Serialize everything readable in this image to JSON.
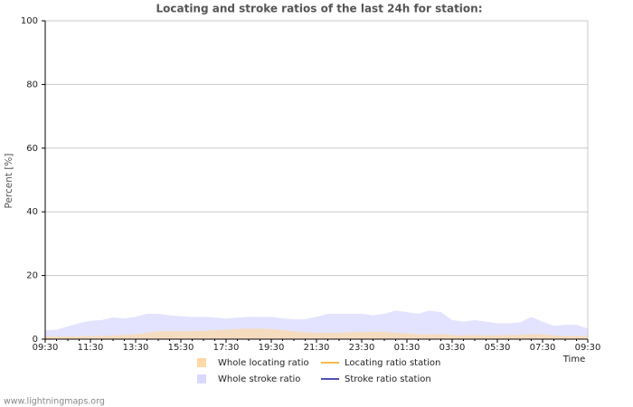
{
  "chart_data": {
    "type": "area",
    "title": "Locating and stroke ratios of the last 24h for station:",
    "y_label": "Percent   [%]",
    "x_label": "Time",
    "source": "www.lightningmaps.org",
    "categories": [
      "09:30",
      null,
      null,
      null,
      "11:30",
      null,
      null,
      null,
      "13:30",
      null,
      null,
      null,
      "15:30",
      null,
      null,
      null,
      "17:30",
      null,
      null,
      null,
      "19:30",
      null,
      null,
      null,
      "21:30",
      null,
      null,
      null,
      "23:30",
      null,
      null,
      null,
      "01:30",
      null,
      null,
      null,
      "03:30",
      null,
      null,
      null,
      "05:30",
      null,
      null,
      null,
      "07:30",
      null,
      null,
      null,
      "09:30"
    ],
    "ylim": [
      0,
      100
    ],
    "yticks": [
      0,
      20,
      40,
      60,
      80,
      100
    ],
    "grid": true,
    "series": [
      {
        "name": "Whole stroke ratio",
        "kind": "area",
        "color": "#d9d9ff",
        "values": [
          2.8,
          3.0,
          4.0,
          5.0,
          5.8,
          6.0,
          6.8,
          6.5,
          7.0,
          8.0,
          8.0,
          7.5,
          7.2,
          7.0,
          7.0,
          6.8,
          6.5,
          6.8,
          7.0,
          7.0,
          7.0,
          6.5,
          6.2,
          6.3,
          7.0,
          8.0,
          8.0,
          8.0,
          8.0,
          7.5,
          8.0,
          9.0,
          8.5,
          8.0,
          9.0,
          8.5,
          6.0,
          5.5,
          6.0,
          5.5,
          5.0,
          5.0,
          5.3,
          7.0,
          5.5,
          4.2,
          4.5,
          4.5,
          3.3
        ]
      },
      {
        "name": "Whole locating ratio",
        "kind": "area",
        "color": "#fcd9a8",
        "values": [
          0.8,
          0.8,
          0.8,
          0.9,
          1.0,
          1.0,
          1.2,
          1.3,
          1.5,
          2.0,
          2.5,
          2.5,
          2.5,
          2.5,
          2.6,
          2.8,
          3.0,
          3.2,
          3.3,
          3.3,
          3.2,
          2.8,
          2.5,
          2.2,
          2.0,
          2.0,
          2.0,
          2.2,
          2.2,
          2.3,
          2.3,
          2.0,
          1.8,
          1.5,
          1.5,
          1.6,
          1.3,
          1.2,
          1.3,
          1.2,
          1.2,
          1.3,
          1.3,
          1.6,
          1.5,
          1.2,
          1.0,
          1.0,
          1.0
        ]
      },
      {
        "name": "Locating ratio station",
        "kind": "line",
        "color": "#f5b94a",
        "values": [
          null,
          null,
          null,
          null,
          null,
          null,
          null,
          null,
          null,
          null,
          null,
          null,
          null,
          null,
          null,
          null,
          null,
          null,
          null,
          null,
          null,
          null,
          null,
          null,
          null,
          null,
          null,
          null,
          null,
          null,
          null,
          null,
          null,
          null,
          null,
          null,
          null,
          null,
          null,
          null,
          null,
          null,
          null,
          null,
          null,
          null,
          null,
          null,
          null
        ]
      },
      {
        "name": "Stroke ratio station",
        "kind": "line",
        "color": "#5050b8",
        "values": [
          null,
          null,
          null,
          null,
          null,
          null,
          null,
          null,
          null,
          null,
          null,
          null,
          null,
          null,
          null,
          null,
          null,
          null,
          null,
          null,
          null,
          null,
          null,
          null,
          null,
          null,
          null,
          null,
          null,
          null,
          null,
          null,
          null,
          null,
          null,
          null,
          null,
          null,
          null,
          null,
          null,
          null,
          null,
          null,
          null,
          null,
          null,
          null,
          null
        ]
      }
    ]
  }
}
